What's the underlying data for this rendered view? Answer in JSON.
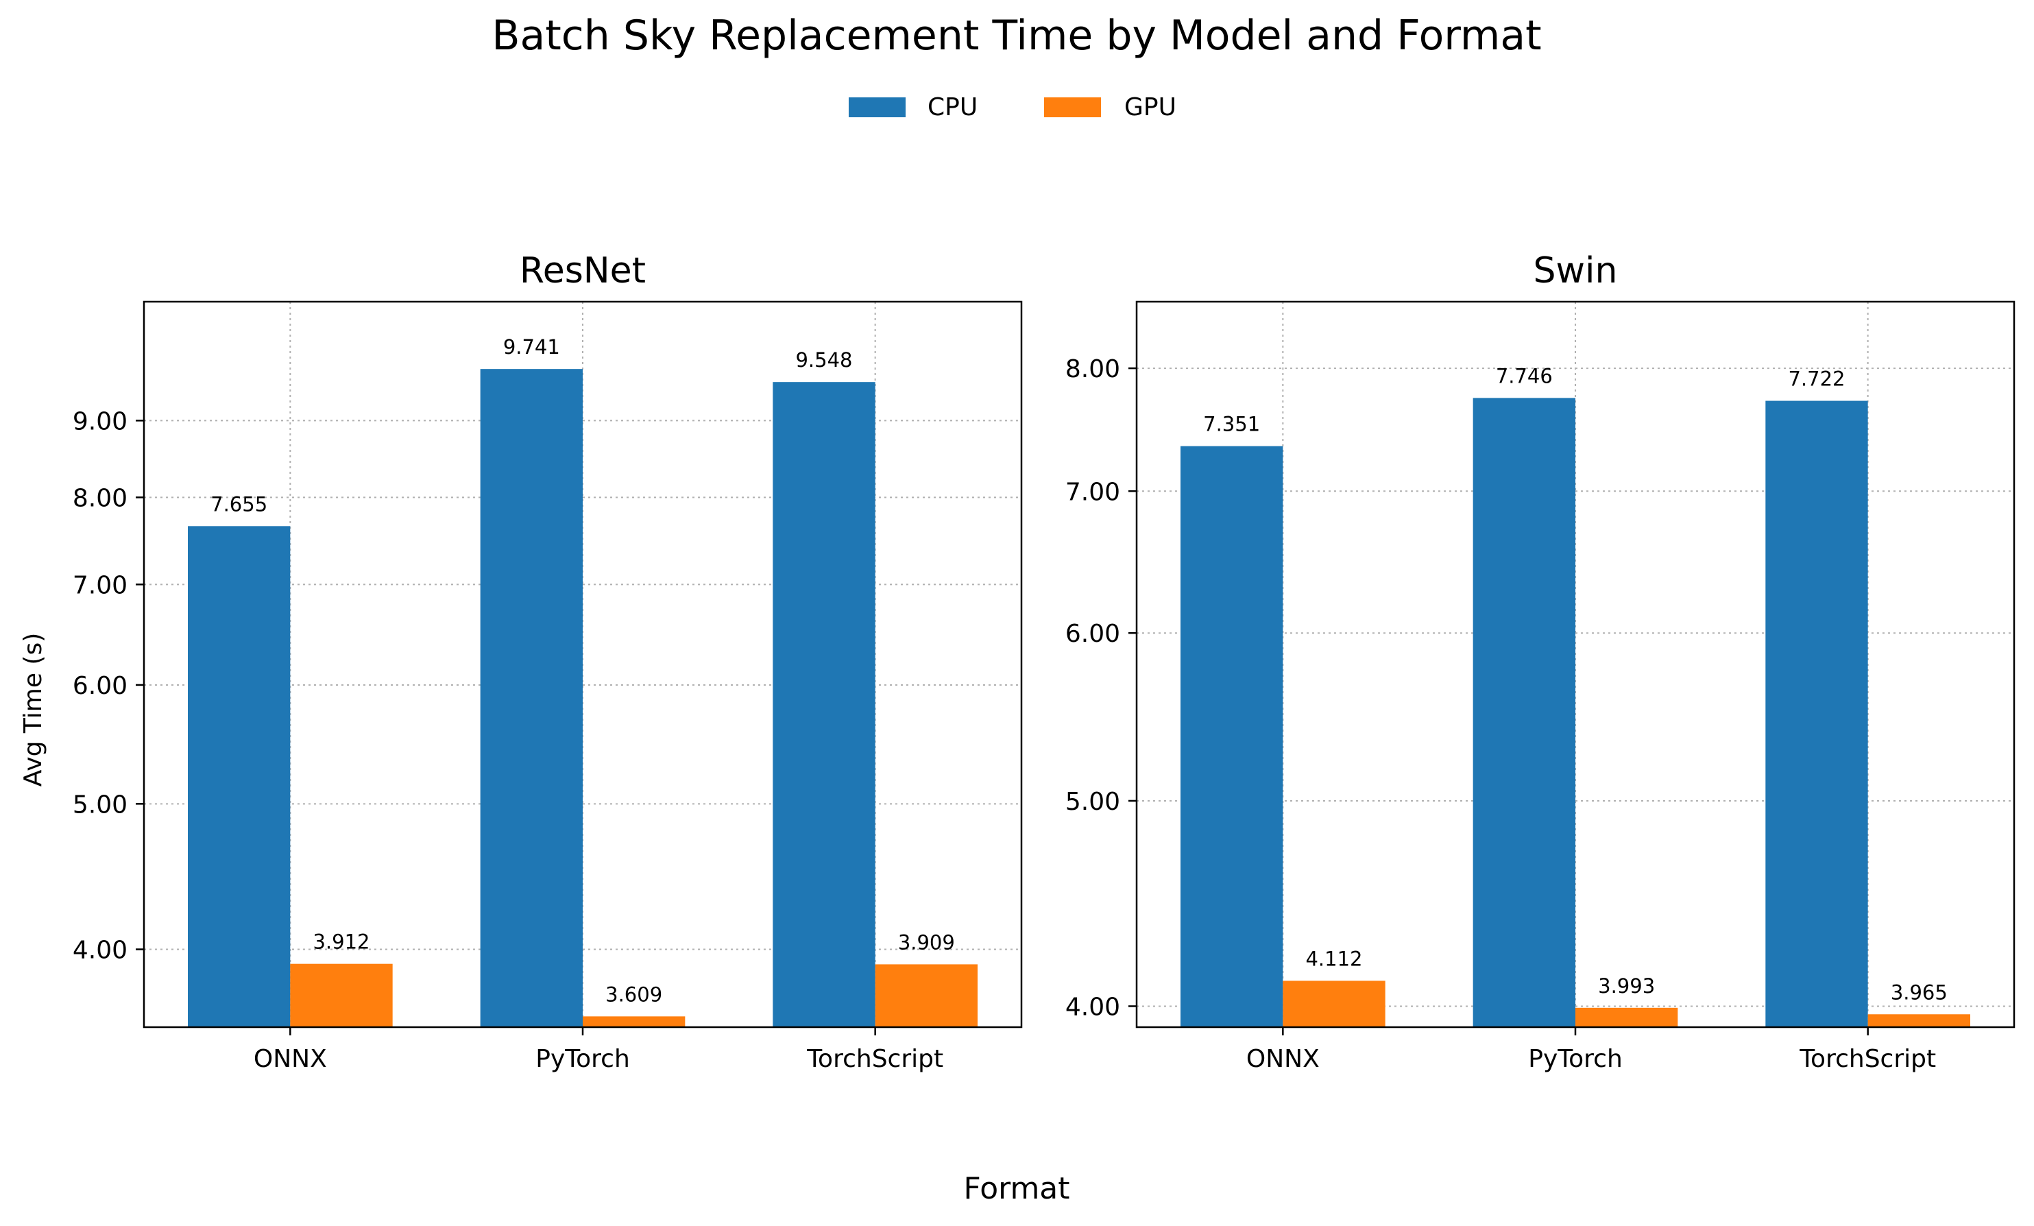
{
  "figure": {
    "title": "Batch Sky Replacement Time by Model and Format",
    "xlabel": "Format",
    "ylabel": "Avg Time (s)",
    "legend": {
      "placement": "top-center",
      "entries": [
        {
          "name": "CPU",
          "color": "#1f77b4"
        },
        {
          "name": "GPU",
          "color": "#ff7f0e"
        }
      ]
    }
  },
  "chart_data": [
    {
      "type": "bar",
      "title": "ResNet",
      "yscale": "log",
      "ylim": [
        3.55,
        10.8
      ],
      "yticks": [
        "4.00",
        "5.00",
        "6.00",
        "7.00",
        "8.00",
        "9.00"
      ],
      "yticks_values": [
        4,
        5,
        6,
        7,
        8,
        9
      ],
      "grid": true,
      "categories": [
        "ONNX",
        "PyTorch",
        "TorchScript"
      ],
      "series": [
        {
          "name": "CPU",
          "color": "#1f77b4",
          "values": [
            7.655,
            9.741,
            9.548
          ],
          "labels": [
            "7.655",
            "9.741",
            "9.548"
          ]
        },
        {
          "name": "GPU",
          "color": "#ff7f0e",
          "values": [
            3.912,
            3.609,
            3.909
          ],
          "labels": [
            "3.912",
            "3.609",
            "3.909"
          ]
        }
      ]
    },
    {
      "type": "bar",
      "title": "Swin",
      "yscale": "log",
      "ylim": [
        3.91,
        8.6
      ],
      "yticks": [
        "4.00",
        "5.00",
        "6.00",
        "7.00",
        "8.00"
      ],
      "yticks_values": [
        4,
        5,
        6,
        7,
        8
      ],
      "grid": true,
      "categories": [
        "ONNX",
        "PyTorch",
        "TorchScript"
      ],
      "series": [
        {
          "name": "CPU",
          "color": "#1f77b4",
          "values": [
            7.351,
            7.746,
            7.722
          ],
          "labels": [
            "7.351",
            "7.746",
            "7.722"
          ]
        },
        {
          "name": "GPU",
          "color": "#ff7f0e",
          "values": [
            4.112,
            3.993,
            3.965
          ],
          "labels": [
            "4.112",
            "3.993",
            "3.965"
          ]
        }
      ]
    }
  ]
}
